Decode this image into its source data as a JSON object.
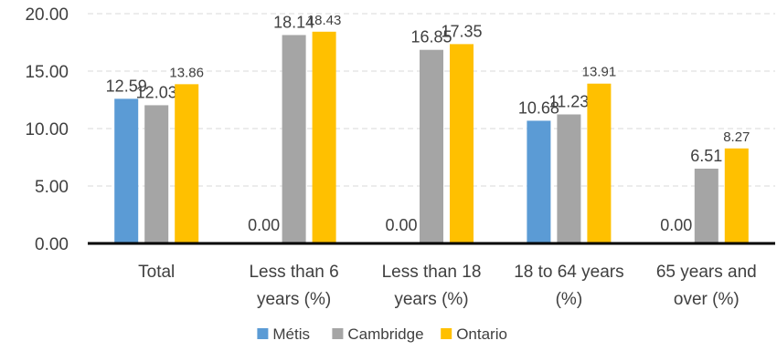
{
  "chart_data": {
    "type": "bar",
    "categories": [
      [
        "Total"
      ],
      [
        "Less than 6",
        "years (%)"
      ],
      [
        "Less than 18",
        "years (%)"
      ],
      [
        "18 to 64 years",
        "(%)"
      ],
      [
        "65 years and",
        "over (%)"
      ]
    ],
    "series": [
      {
        "name": "Métis",
        "color": "#5b9bd5",
        "values": [
          12.59,
          0.0,
          0.0,
          10.68,
          0.0
        ],
        "labels": [
          "12.59",
          "0.00",
          "0.00",
          "10.68",
          "0.00"
        ]
      },
      {
        "name": "Cambridge",
        "color": "#a5a5a5",
        "values": [
          12.03,
          18.14,
          16.85,
          11.23,
          6.51
        ],
        "labels": [
          "12.03",
          "18.14",
          "16.85",
          "11.23",
          "6.51"
        ]
      },
      {
        "name": "Ontario",
        "color": "#ffc000",
        "values": [
          13.86,
          18.43,
          17.35,
          13.91,
          8.27
        ],
        "labels": [
          "13.86",
          "18.43",
          "17.35",
          "13.91",
          "8.27"
        ]
      }
    ],
    "yticks": [
      "0.00",
      "5.00",
      "10.00",
      "15.00",
      "20.00"
    ],
    "ylim": [
      0,
      20
    ],
    "grid": true,
    "legend_position": "bottom",
    "title": "",
    "xlabel": "",
    "ylabel": ""
  }
}
